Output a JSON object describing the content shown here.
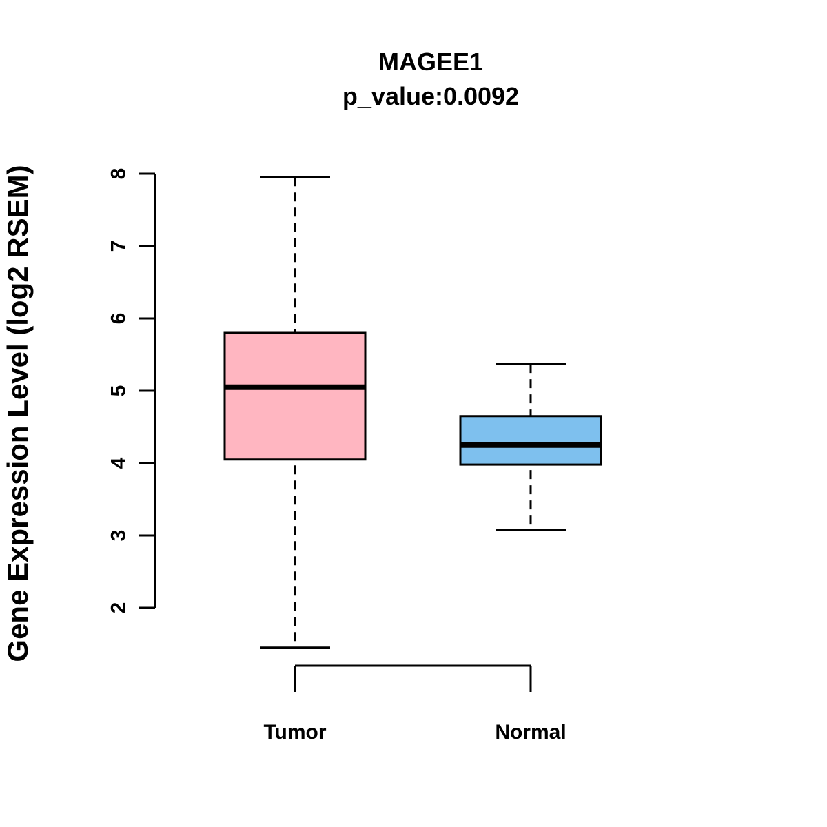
{
  "title": "MAGEE1",
  "subtitle": "p_value:0.0092",
  "ylabel": "Gene Expression Level (log2 RSEM)",
  "chart_data": {
    "type": "boxplot",
    "title": "MAGEE1",
    "subtitle": "p_value:0.0092",
    "ylabel": "Gene Expression Level (log2 RSEM)",
    "xlabel": "",
    "categories": [
      "Tumor",
      "Normal"
    ],
    "y_ticks": [
      2,
      3,
      4,
      5,
      6,
      7,
      8
    ],
    "ylim": [
      2,
      8
    ],
    "grid": false,
    "legend": "none",
    "series": [
      {
        "name": "Tumor",
        "color": "#FFB6C1",
        "whisker_low": 1.45,
        "q1": 4.05,
        "median": 5.05,
        "q3": 5.8,
        "whisker_high": 7.95
      },
      {
        "name": "Normal",
        "color": "#7EC0EE",
        "whisker_low": 3.08,
        "q1": 3.98,
        "median": 4.25,
        "q3": 4.65,
        "whisker_high": 5.37
      }
    ]
  }
}
